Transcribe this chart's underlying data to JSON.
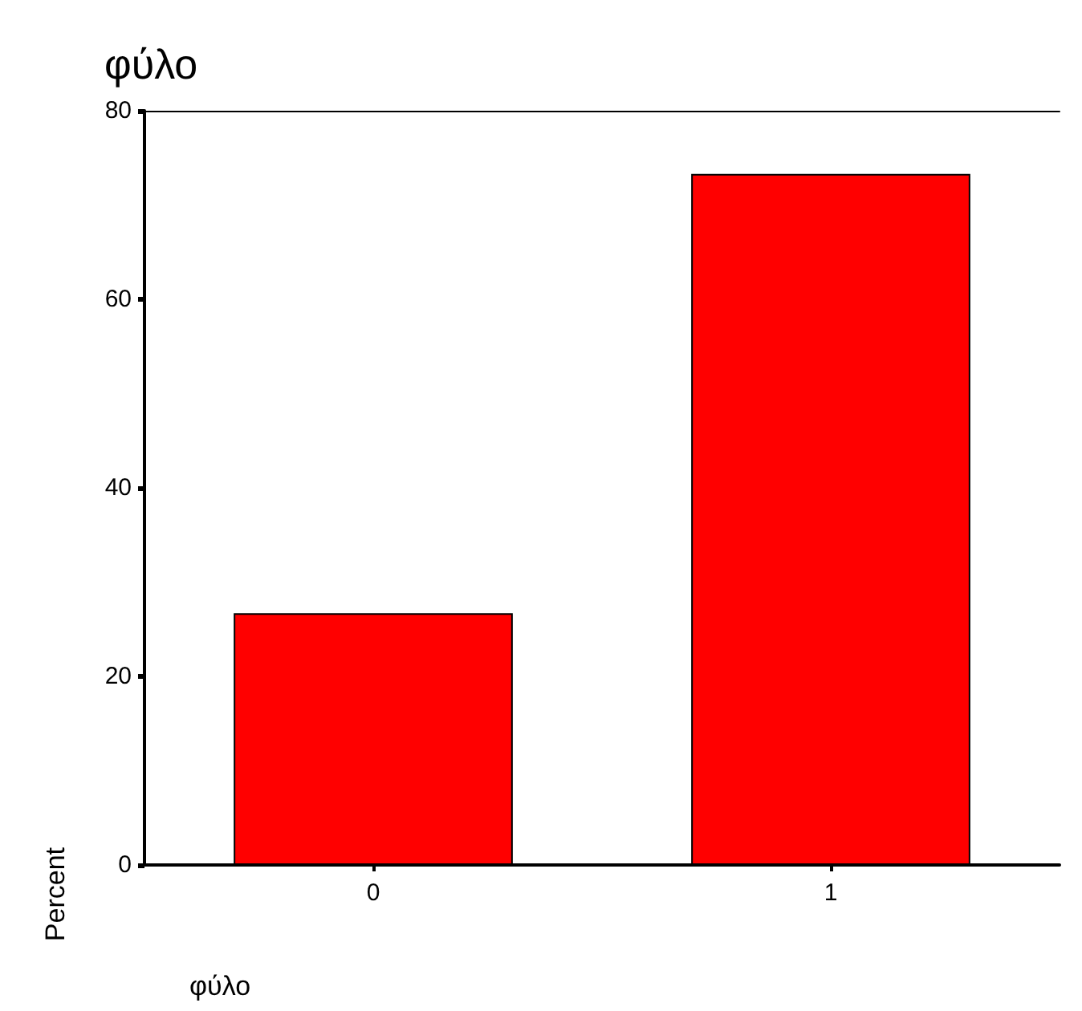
{
  "chart_data": {
    "type": "bar",
    "title": "φύλο",
    "xlabel": "φύλο",
    "ylabel": "Percent",
    "categories": [
      "0",
      "1"
    ],
    "values": [
      26.7,
      73.3
    ],
    "color": "#ff0000",
    "ylim": [
      0,
      80
    ],
    "yticks": [
      0,
      20,
      40,
      60,
      80
    ],
    "grid": false
  }
}
